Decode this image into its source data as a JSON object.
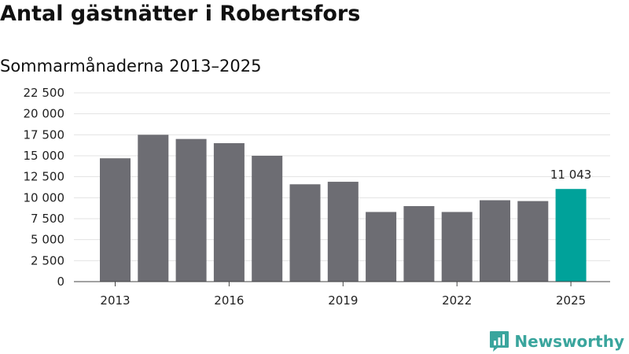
{
  "header": {
    "title": "Antal gästnätter i Robertsfors",
    "subtitle": "Sommarmånaderna 2013–2025"
  },
  "brand": {
    "name": "Newsworthy",
    "color": "#3aa59d",
    "icon": "newsworthy-logo-icon"
  },
  "chart_data": {
    "type": "bar",
    "title": "Antal gästnätter i Robertsfors",
    "subtitle": "Sommarmånaderna 2013–2025",
    "xlabel": "",
    "ylabel": "",
    "categories": [
      "2013",
      "2014",
      "2015",
      "2016",
      "2017",
      "2018",
      "2019",
      "2020",
      "2021",
      "2022",
      "2023",
      "2024",
      "2025"
    ],
    "values": [
      14700,
      17500,
      17000,
      16500,
      15000,
      11600,
      11900,
      8300,
      9000,
      8300,
      9700,
      9600,
      11043
    ],
    "ylim": [
      0,
      22500
    ],
    "yticks": [
      0,
      2500,
      5000,
      7500,
      10000,
      12500,
      15000,
      17500,
      20000,
      22500
    ],
    "ytick_labels": [
      "0",
      "2 500",
      "5 000",
      "7 500",
      "10 000",
      "12 500",
      "15 000",
      "17 500",
      "20 000",
      "22 500"
    ],
    "xtick_labels": [
      "2013",
      "2016",
      "2019",
      "2022",
      "2025"
    ],
    "highlight": {
      "category": "2025",
      "label": "11 043"
    },
    "grid": true,
    "colors": {
      "bar": "#6d6d73",
      "highlight": "#00a29a",
      "grid": "#e3e3e3",
      "axis": "#444444"
    }
  }
}
